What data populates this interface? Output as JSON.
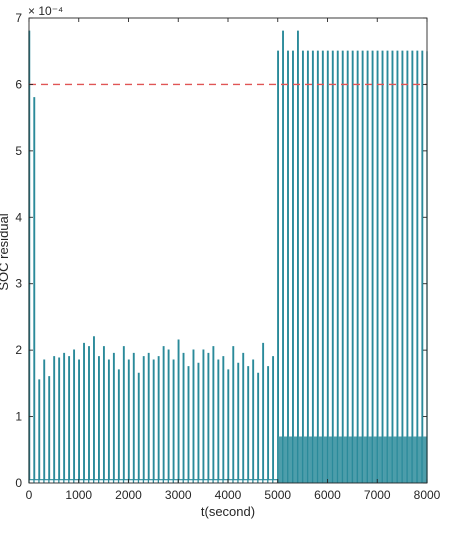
{
  "chart_data": {
    "type": "line",
    "xlabel": "t(second)",
    "ylabel": "SOC residual",
    "y_exponent": "× 10⁻⁴",
    "xlim": [
      0,
      8000
    ],
    "ylim": [
      0,
      7
    ],
    "y_scale_factor": 0.0001,
    "xticks": [
      0,
      1000,
      2000,
      3000,
      4000,
      5000,
      6000,
      7000,
      8000
    ],
    "yticks": [
      0,
      1,
      2,
      3,
      4,
      5,
      6,
      7
    ],
    "grid": false,
    "legend": "none",
    "threshold": {
      "y": 6.0,
      "style": "dashed",
      "color": "#e05555"
    },
    "series": [
      {
        "color": "#2a8a9a",
        "spike_interval": 100,
        "spikes_before_5000": [
          {
            "x": 0,
            "y": 6.8
          },
          {
            "x": 100,
            "y": 5.8
          },
          {
            "x": 200,
            "y": 1.55
          },
          {
            "x": 300,
            "y": 1.85
          },
          {
            "x": 400,
            "y": 1.6
          },
          {
            "x": 500,
            "y": 1.9
          },
          {
            "x": 600,
            "y": 1.88
          },
          {
            "x": 700,
            "y": 1.95
          },
          {
            "x": 800,
            "y": 1.9
          },
          {
            "x": 900,
            "y": 2.0
          },
          {
            "x": 1000,
            "y": 1.85
          },
          {
            "x": 1100,
            "y": 2.1
          },
          {
            "x": 1200,
            "y": 2.05
          },
          {
            "x": 1300,
            "y": 2.2
          },
          {
            "x": 1400,
            "y": 1.9
          },
          {
            "x": 1500,
            "y": 2.05
          },
          {
            "x": 1600,
            "y": 1.85
          },
          {
            "x": 1700,
            "y": 1.95
          },
          {
            "x": 1800,
            "y": 1.7
          },
          {
            "x": 1900,
            "y": 2.05
          },
          {
            "x": 2000,
            "y": 1.85
          },
          {
            "x": 2100,
            "y": 1.95
          },
          {
            "x": 2200,
            "y": 1.65
          },
          {
            "x": 2300,
            "y": 1.9
          },
          {
            "x": 2400,
            "y": 1.95
          },
          {
            "x": 2500,
            "y": 1.85
          },
          {
            "x": 2600,
            "y": 1.9
          },
          {
            "x": 2700,
            "y": 2.05
          },
          {
            "x": 2800,
            "y": 2.0
          },
          {
            "x": 2900,
            "y": 1.85
          },
          {
            "x": 3000,
            "y": 2.15
          },
          {
            "x": 3100,
            "y": 1.95
          },
          {
            "x": 3200,
            "y": 1.75
          },
          {
            "x": 3300,
            "y": 2.0
          },
          {
            "x": 3400,
            "y": 1.8
          },
          {
            "x": 3500,
            "y": 2.0
          },
          {
            "x": 3600,
            "y": 1.95
          },
          {
            "x": 3700,
            "y": 2.05
          },
          {
            "x": 3800,
            "y": 1.85
          },
          {
            "x": 3900,
            "y": 1.9
          },
          {
            "x": 4000,
            "y": 1.7
          },
          {
            "x": 4100,
            "y": 2.05
          },
          {
            "x": 4200,
            "y": 1.8
          },
          {
            "x": 4300,
            "y": 1.95
          },
          {
            "x": 4400,
            "y": 1.75
          },
          {
            "x": 4500,
            "y": 1.85
          },
          {
            "x": 4600,
            "y": 1.65
          },
          {
            "x": 4700,
            "y": 2.1
          },
          {
            "x": 4800,
            "y": 1.75
          },
          {
            "x": 4900,
            "y": 1.9
          }
        ],
        "spikes_after_5000": [
          {
            "x": 5000,
            "y": 6.5
          },
          {
            "x": 5100,
            "y": 6.8
          },
          {
            "x": 5200,
            "y": 6.5
          },
          {
            "x": 5300,
            "y": 6.5
          },
          {
            "x": 5400,
            "y": 6.8
          },
          {
            "x": 5500,
            "y": 6.5
          },
          {
            "x": 5600,
            "y": 6.5
          },
          {
            "x": 5700,
            "y": 6.5
          },
          {
            "x": 5800,
            "y": 6.5
          },
          {
            "x": 5900,
            "y": 6.5
          },
          {
            "x": 6000,
            "y": 6.5
          },
          {
            "x": 6100,
            "y": 6.5
          },
          {
            "x": 6200,
            "y": 6.5
          },
          {
            "x": 6300,
            "y": 6.5
          },
          {
            "x": 6400,
            "y": 6.5
          },
          {
            "x": 6500,
            "y": 6.5
          },
          {
            "x": 6600,
            "y": 6.5
          },
          {
            "x": 6700,
            "y": 6.5
          },
          {
            "x": 6800,
            "y": 6.5
          },
          {
            "x": 6900,
            "y": 6.5
          },
          {
            "x": 7000,
            "y": 6.5
          },
          {
            "x": 7100,
            "y": 6.5
          },
          {
            "x": 7200,
            "y": 6.5
          },
          {
            "x": 7300,
            "y": 6.5
          },
          {
            "x": 7400,
            "y": 6.5
          },
          {
            "x": 7500,
            "y": 6.5
          },
          {
            "x": 7600,
            "y": 6.5
          },
          {
            "x": 7700,
            "y": 6.5
          },
          {
            "x": 7800,
            "y": 6.5
          },
          {
            "x": 7900,
            "y": 6.5
          },
          {
            "x": 8000,
            "y": 6.5
          }
        ],
        "baseline_before_5000": 0.05,
        "baseline_after_5000": 0.7
      }
    ]
  }
}
